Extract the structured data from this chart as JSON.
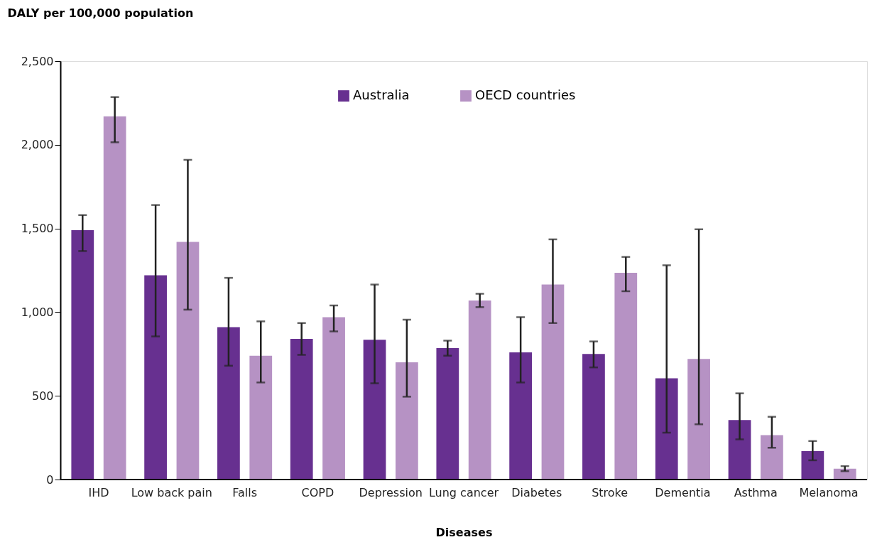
{
  "chart_data": {
    "type": "bar",
    "xlabel": "Diseases",
    "ylabel": "DALY per 100,000 population",
    "categories": [
      "IHD",
      "Low back pain",
      "Falls",
      "COPD",
      "Depression",
      "Lung cancer",
      "Diabetes",
      "Stroke",
      "Dementia",
      "Asthma",
      "Melanoma"
    ],
    "series": [
      {
        "name": "Australia",
        "color": "#673090",
        "values": [
          1490,
          1220,
          910,
          840,
          835,
          785,
          760,
          750,
          605,
          355,
          170
        ],
        "errors": [
          [
            1365,
            1580
          ],
          [
            855,
            1640
          ],
          [
            680,
            1205
          ],
          [
            745,
            935
          ],
          [
            575,
            1165
          ],
          [
            740,
            830
          ],
          [
            580,
            970
          ],
          [
            670,
            825
          ],
          [
            280,
            1280
          ],
          [
            240,
            515
          ],
          [
            115,
            230
          ]
        ]
      },
      {
        "name": "OECD countries",
        "color": "#b692c4",
        "values": [
          2170,
          1420,
          740,
          970,
          700,
          1070,
          1165,
          1235,
          720,
          265,
          65
        ],
        "errors": [
          [
            2015,
            2285
          ],
          [
            1015,
            1910
          ],
          [
            580,
            945
          ],
          [
            885,
            1040
          ],
          [
            495,
            955
          ],
          [
            1030,
            1110
          ],
          [
            935,
            1435
          ],
          [
            1125,
            1330
          ],
          [
            330,
            1495
          ],
          [
            190,
            375
          ],
          [
            50,
            80
          ]
        ]
      }
    ],
    "ylim": [
      0,
      2500
    ],
    "yticks": [
      0,
      {
        "value": 500,
        "label": "500"
      },
      {
        "value": 1000,
        "label": "1,000"
      },
      {
        "value": 1500,
        "label": "1,500"
      },
      {
        "value": 2000,
        "label": "2,000"
      },
      {
        "value": 2500,
        "label": "2,500"
      }
    ],
    "legend": "top",
    "grid": false
  }
}
